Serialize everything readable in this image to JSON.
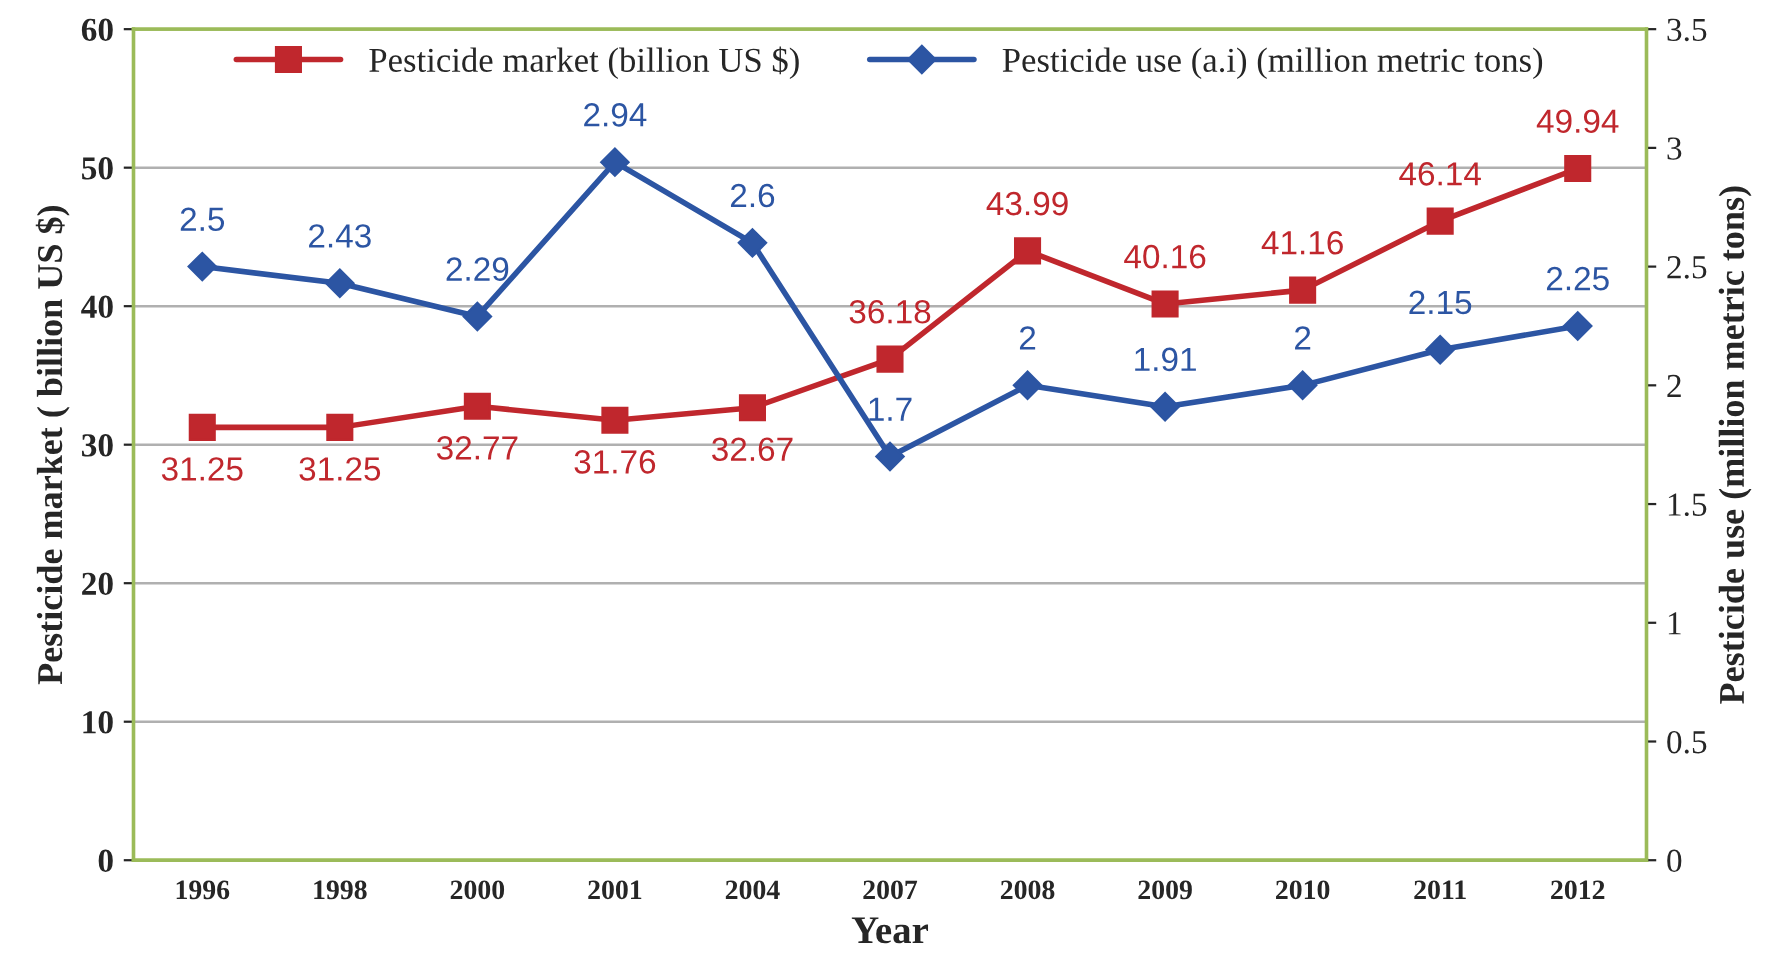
{
  "chart_data": {
    "type": "line",
    "xlabel": "Year",
    "ylabel": "Pesticide market ( billion US $)",
    "y2label": "Pesticide use (million metric tons)",
    "categories": [
      "1996",
      "1998",
      "2000",
      "2001",
      "2004",
      "2007",
      "2008",
      "2009",
      "2010",
      "2011",
      "2012"
    ],
    "series": [
      {
        "name": "Pesticide market (billion US $)",
        "color": "#c0272d",
        "marker": "square",
        "values": [
          31.25,
          31.25,
          32.77,
          31.76,
          32.67,
          36.18,
          43.99,
          40.16,
          41.16,
          46.14,
          49.94
        ]
      },
      {
        "name": "Pesticide use (a.i) (million metric tons)",
        "color": "#2c55a3",
        "marker": "diamond",
        "axis": "y2",
        "values": [
          2.5,
          2.43,
          2.29,
          2.94,
          2.6,
          1.7,
          2,
          1.91,
          2,
          2.15,
          2.25
        ]
      }
    ],
    "ylim": [
      0,
      60
    ],
    "yticks": [
      0,
      10,
      20,
      30,
      40,
      50,
      60
    ],
    "y2lim": [
      0,
      3.5
    ],
    "y2ticks": [
      0,
      0.5,
      1,
      1.5,
      2,
      2.5,
      3,
      3.5
    ],
    "grid": "y",
    "legend": "top",
    "data_labels": true,
    "line_style": "solid"
  }
}
